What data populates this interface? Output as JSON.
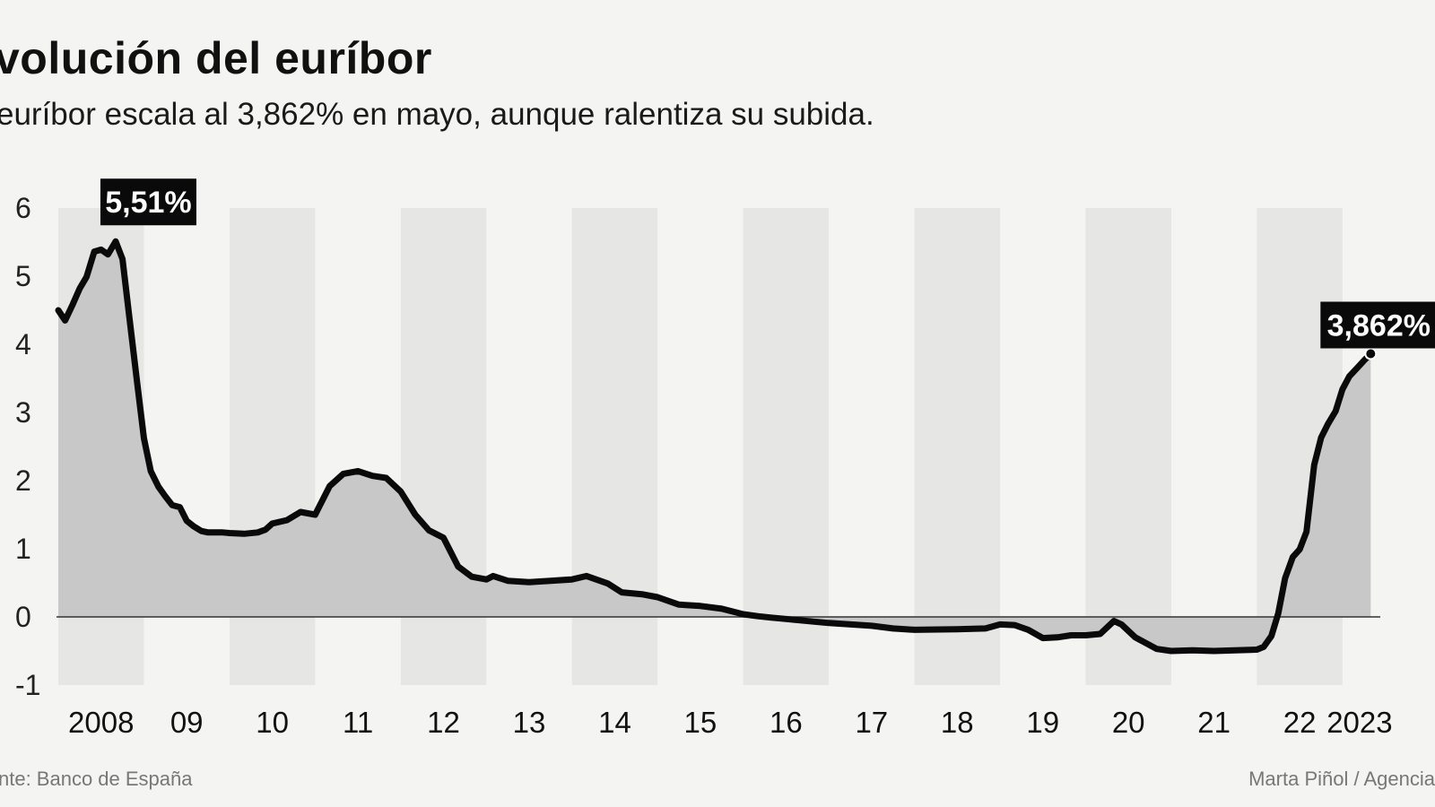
{
  "title": "volución del euríbor",
  "subtitle": "euríbor escala al 3,862% en mayo, aunque ralentiza su subida.",
  "source": "nte: Banco de España",
  "credit": "Marta Piñol / Agencia",
  "colors": {
    "background": "#f4f4f2",
    "band": "#e6e6e4",
    "area_fill": "#c8c8c8",
    "line": "#0a0a0a",
    "callout_bg": "#0a0a0a"
  },
  "chart_data": {
    "type": "area",
    "title": "volución del euríbor",
    "subtitle": "euríbor escala al 3,862% en mayo, aunque ralentiza su subida.",
    "xlabel": "",
    "ylabel": "",
    "xlim": [
      2008.0,
      2023.4
    ],
    "ylim": [
      -1,
      6
    ],
    "yticks": [
      6,
      5,
      4,
      3,
      2,
      1,
      0,
      -1
    ],
    "xticks": [
      {
        "label": "2008",
        "x": 2008.5
      },
      {
        "label": "09",
        "x": 2009.5
      },
      {
        "label": "10",
        "x": 2010.5
      },
      {
        "label": "11",
        "x": 2011.5
      },
      {
        "label": "12",
        "x": 2012.5
      },
      {
        "label": "13",
        "x": 2013.5
      },
      {
        "label": "14",
        "x": 2014.5
      },
      {
        "label": "15",
        "x": 2015.5
      },
      {
        "label": "16",
        "x": 2016.5
      },
      {
        "label": "17",
        "x": 2017.5
      },
      {
        "label": "18",
        "x": 2018.5
      },
      {
        "label": "19",
        "x": 2019.5
      },
      {
        "label": "20",
        "x": 2020.5
      },
      {
        "label": "21",
        "x": 2021.5
      },
      {
        "label": "22",
        "x": 2022.5
      },
      {
        "label": "2023",
        "x": 2023.2
      }
    ],
    "grid": false,
    "alternating_year_bands": true,
    "series": [
      {
        "values": [
          [
            2008.0,
            4.5
          ],
          [
            2008.08,
            4.35
          ],
          [
            2008.17,
            4.59
          ],
          [
            2008.25,
            4.82
          ],
          [
            2008.33,
            4.99
          ],
          [
            2008.42,
            5.36
          ],
          [
            2008.5,
            5.39
          ],
          [
            2008.58,
            5.32
          ],
          [
            2008.67,
            5.51
          ],
          [
            2008.75,
            5.25
          ],
          [
            2008.83,
            4.4
          ],
          [
            2008.92,
            3.45
          ],
          [
            2009.0,
            2.62
          ],
          [
            2009.08,
            2.14
          ],
          [
            2009.17,
            1.91
          ],
          [
            2009.25,
            1.77
          ],
          [
            2009.33,
            1.64
          ],
          [
            2009.42,
            1.61
          ],
          [
            2009.5,
            1.41
          ],
          [
            2009.58,
            1.33
          ],
          [
            2009.67,
            1.26
          ],
          [
            2009.75,
            1.24
          ],
          [
            2009.83,
            1.24
          ],
          [
            2009.92,
            1.24
          ],
          [
            2010.0,
            1.23
          ],
          [
            2010.17,
            1.22
          ],
          [
            2010.33,
            1.24
          ],
          [
            2010.42,
            1.28
          ],
          [
            2010.5,
            1.37
          ],
          [
            2010.67,
            1.42
          ],
          [
            2010.83,
            1.54
          ],
          [
            2011.0,
            1.5
          ],
          [
            2011.17,
            1.92
          ],
          [
            2011.33,
            2.1
          ],
          [
            2011.5,
            2.14
          ],
          [
            2011.67,
            2.07
          ],
          [
            2011.83,
            2.04
          ],
          [
            2012.0,
            1.84
          ],
          [
            2012.17,
            1.5
          ],
          [
            2012.33,
            1.27
          ],
          [
            2012.5,
            1.16
          ],
          [
            2012.67,
            0.74
          ],
          [
            2012.83,
            0.59
          ],
          [
            2013.0,
            0.55
          ],
          [
            2013.08,
            0.6
          ],
          [
            2013.25,
            0.53
          ],
          [
            2013.5,
            0.51
          ],
          [
            2013.75,
            0.53
          ],
          [
            2014.0,
            0.55
          ],
          [
            2014.17,
            0.6
          ],
          [
            2014.42,
            0.49
          ],
          [
            2014.58,
            0.36
          ],
          [
            2014.83,
            0.33
          ],
          [
            2015.0,
            0.29
          ],
          [
            2015.25,
            0.18
          ],
          [
            2015.5,
            0.16
          ],
          [
            2015.75,
            0.12
          ],
          [
            2016.0,
            0.04
          ],
          [
            2016.17,
            0.01
          ],
          [
            2016.33,
            -0.01
          ],
          [
            2016.5,
            -0.03
          ],
          [
            2016.83,
            -0.07
          ],
          [
            2017.0,
            -0.09
          ],
          [
            2017.5,
            -0.13
          ],
          [
            2017.75,
            -0.17
          ],
          [
            2018.0,
            -0.19
          ],
          [
            2018.5,
            -0.18
          ],
          [
            2018.83,
            -0.17
          ],
          [
            2019.0,
            -0.11
          ],
          [
            2019.17,
            -0.12
          ],
          [
            2019.33,
            -0.19
          ],
          [
            2019.5,
            -0.31
          ],
          [
            2019.67,
            -0.3
          ],
          [
            2019.83,
            -0.27
          ],
          [
            2020.0,
            -0.27
          ],
          [
            2020.17,
            -0.25
          ],
          [
            2020.33,
            -0.06
          ],
          [
            2020.42,
            -0.11
          ],
          [
            2020.58,
            -0.3
          ],
          [
            2020.83,
            -0.47
          ],
          [
            2021.0,
            -0.5
          ],
          [
            2021.25,
            -0.49
          ],
          [
            2021.5,
            -0.5
          ],
          [
            2021.75,
            -0.49
          ],
          [
            2022.0,
            -0.48
          ],
          [
            2022.08,
            -0.44
          ],
          [
            2022.17,
            -0.28
          ],
          [
            2022.25,
            0.05
          ],
          [
            2022.33,
            0.57
          ],
          [
            2022.42,
            0.88
          ],
          [
            2022.5,
            0.99
          ],
          [
            2022.58,
            1.25
          ],
          [
            2022.67,
            2.23
          ],
          [
            2022.75,
            2.63
          ],
          [
            2022.83,
            2.83
          ],
          [
            2022.92,
            3.02
          ],
          [
            2023.0,
            3.34
          ],
          [
            2023.08,
            3.53
          ],
          [
            2023.17,
            3.65
          ],
          [
            2023.25,
            3.76
          ],
          [
            2023.33,
            3.862
          ]
        ]
      }
    ],
    "annotations": [
      {
        "text": "5,51%",
        "x": 2008.67,
        "y": 5.51
      },
      {
        "text": "3,862%",
        "x": 2023.33,
        "y": 3.862
      }
    ]
  }
}
